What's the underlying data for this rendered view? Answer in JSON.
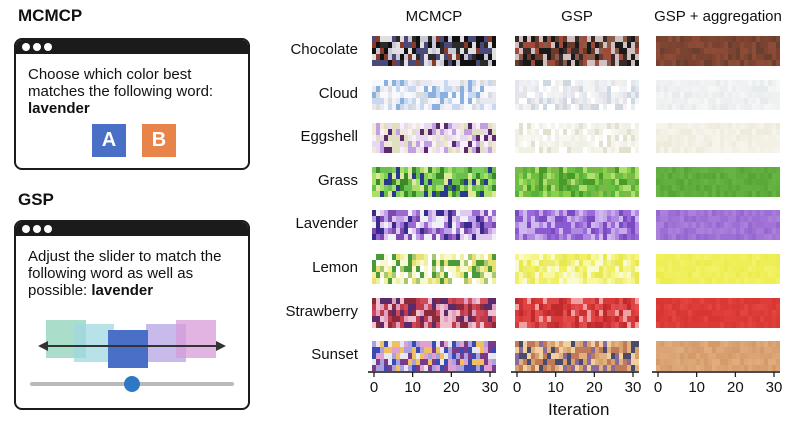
{
  "mcmcp": {
    "title": "MCMCP",
    "prompt_text": "Choose which color best matches the following word:",
    "word": "lavender",
    "option_a": "A",
    "option_b": "B",
    "option_a_color": "#4a6fc6",
    "option_b_color": "#e8834a"
  },
  "gsp": {
    "title": "GSP",
    "prompt_text": "Adjust the slider to match the following word as well as possible:",
    "word": "lavender",
    "swatch_colors": [
      "#8fd3b8",
      "#9fd8e0",
      "#4a6fc6",
      "#b7a3e6",
      "#d79bd8"
    ],
    "slider_track_color": "#b9b9b9",
    "slider_thumb_color": "#2f78c4",
    "slider_value": 0.5
  },
  "columns": [
    "MCMCP",
    "GSP",
    "GSP + aggregation"
  ],
  "rows": [
    {
      "label": "Chocolate",
      "colors": {
        "mcmcp": [
          "#111111",
          "#e0e0e0",
          "#4a4a7a",
          "#8a3a2a",
          "#2a2a2a",
          "#c8c8d8"
        ],
        "gsp": [
          "#6a3a2a",
          "#1a1a1a",
          "#a04a3a",
          "#3a2a2a",
          "#8a5a4a",
          "#d0c0c0"
        ],
        "agg": [
          "#6b3f2f",
          "#7a4433",
          "#8a4a35",
          "#7b4030",
          "#8c4c36",
          "#7e4532"
        ]
      }
    },
    {
      "label": "Cloud",
      "colors": {
        "mcmcp": [
          "#f2f2f8",
          "#c8d8f0",
          "#e8e8f0",
          "#8ab0e0",
          "#dcdcdc",
          "#f8f8ff"
        ],
        "gsp": [
          "#f4f4f4",
          "#e8eef4",
          "#ffffff",
          "#cfd8e0",
          "#f0f0f0",
          "#e4e4ea"
        ],
        "agg": [
          "#eceff0",
          "#f2f3f4",
          "#e8ebec",
          "#f0f2f2",
          "#eef0f1",
          "#f5f6f6"
        ]
      }
    },
    {
      "label": "Eggshell",
      "colors": {
        "mcmcp": [
          "#e8d8f0",
          "#c0a0e0",
          "#f0e8d8",
          "#5a2a6a",
          "#e0e0c0",
          "#f8f0ff"
        ],
        "gsp": [
          "#f8f8f0",
          "#f0f0e4",
          "#ffffff",
          "#e4e0d0",
          "#f4f4ec",
          "#f0f0e8"
        ],
        "agg": [
          "#f3f1e6",
          "#efedd f",
          "#f5f3ea",
          "#eeebdc",
          "#f2f0e4",
          "#f6f4ec"
        ]
      }
    },
    {
      "label": "Grass",
      "colors": {
        "mcmcp": [
          "#6ac04a",
          "#2a3a8a",
          "#a8e06a",
          "#3a8a2a",
          "#e0e8a0",
          "#7ad05a"
        ],
        "gsp": [
          "#5ab03a",
          "#8ad04a",
          "#4a9a2a",
          "#b0e070",
          "#6ac040",
          "#7ab848"
        ],
        "agg": [
          "#5aa83a",
          "#62b040",
          "#58a438",
          "#66b444",
          "#5eac3c",
          "#60ae3e"
        ]
      }
    },
    {
      "label": "Lavender",
      "colors": {
        "mcmcp": [
          "#7a4ab0",
          "#c0a0e8",
          "#3a2a8a",
          "#e0c8f0",
          "#9a6ad0",
          "#f0f0f8"
        ],
        "gsp": [
          "#9a6ad8",
          "#b08ae0",
          "#7a4ac0",
          "#d0b8f0",
          "#8a5ad0",
          "#c8a8e8"
        ],
        "agg": [
          "#9c6fd6",
          "#a57ad8",
          "#9468d0",
          "#ab80dc",
          "#9970d4",
          "#a274d6"
        ]
      }
    },
    {
      "label": "Lemon",
      "colors": {
        "mcmcp": [
          "#f0f0a0",
          "#4a9a3a",
          "#e8e070",
          "#f8f8d0",
          "#a8c870",
          "#ffffff"
        ],
        "gsp": [
          "#f0f060",
          "#f8f8a0",
          "#e8e850",
          "#fafad0",
          "#ecec70",
          "#f4f488"
        ],
        "agg": [
          "#eeee55",
          "#f0f060",
          "#ecec50",
          "#f2f268",
          "#eeee58",
          "#f0f05c"
        ]
      }
    },
    {
      "label": "Strawberry",
      "colors": {
        "mcmcp": [
          "#c03a4a",
          "#e0a0c0",
          "#8a2a3a",
          "#f0c0d0",
          "#d04a5a",
          "#5a2a6a"
        ],
        "gsp": [
          "#d83a3a",
          "#e05050",
          "#c02a2a",
          "#f0a0a0",
          "#e04444",
          "#cc3030"
        ],
        "agg": [
          "#dc3a36",
          "#e0403a",
          "#d83632",
          "#e2443e",
          "#da3834",
          "#de3c38"
        ]
      }
    },
    {
      "label": "Sunset",
      "colors": {
        "mcmcp": [
          "#3a4ab0",
          "#e0a0d0",
          "#f0c060",
          "#7a3a8a",
          "#a8a0e0",
          "#e8e8f0"
        ],
        "gsp": [
          "#d8a06a",
          "#4a4a6a",
          "#f0d0a0",
          "#8a6a9a",
          "#e0b080",
          "#c07a5a"
        ],
        "agg": [
          "#d8a070",
          "#dca878",
          "#d49a6a",
          "#e0ac7c",
          "#d69e6e",
          "#daa474"
        ]
      }
    }
  ],
  "x_ticks": [
    "0",
    "10",
    "20",
    "30"
  ],
  "x_label": "Iteration"
}
